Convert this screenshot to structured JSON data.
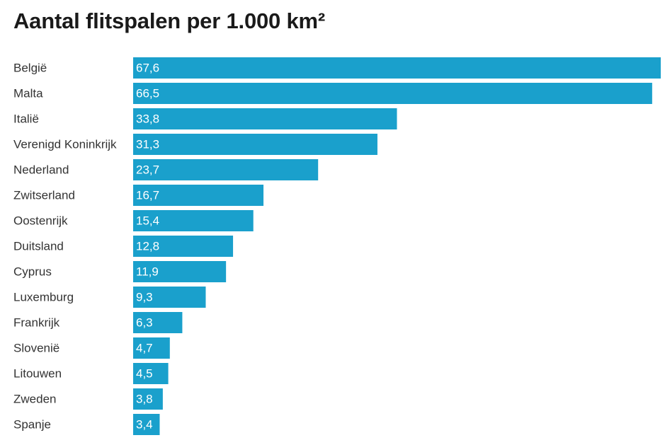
{
  "chart_data": {
    "type": "bar",
    "orientation": "horizontal",
    "title": "Aantal flitspalen per 1.000 km²",
    "categories": [
      "België",
      "Malta",
      "Italië",
      "Verenigd Koninkrijk",
      "Nederland",
      "Zwitserland",
      "Oostenrijk",
      "Duitsland",
      "Cyprus",
      "Luxemburg",
      "Frankrijk",
      "Slovenië",
      "Litouwen",
      "Zweden",
      "Spanje"
    ],
    "values": [
      67.6,
      66.5,
      33.8,
      31.3,
      23.7,
      16.7,
      15.4,
      12.8,
      11.9,
      9.3,
      6.3,
      4.7,
      4.5,
      3.8,
      3.4
    ],
    "value_labels": [
      "67,6",
      "66,5",
      "33,8",
      "31,3",
      "23,7",
      "16,7",
      "15,4",
      "12,8",
      "11,9",
      "9,3",
      "6,3",
      "4,7",
      "4,5",
      "3,8",
      "3,4"
    ],
    "xlim": [
      0,
      67.6
    ],
    "xlabel": "",
    "ylabel": "",
    "grid": false,
    "legend": "none",
    "bar_color": "#1aa0cc"
  }
}
